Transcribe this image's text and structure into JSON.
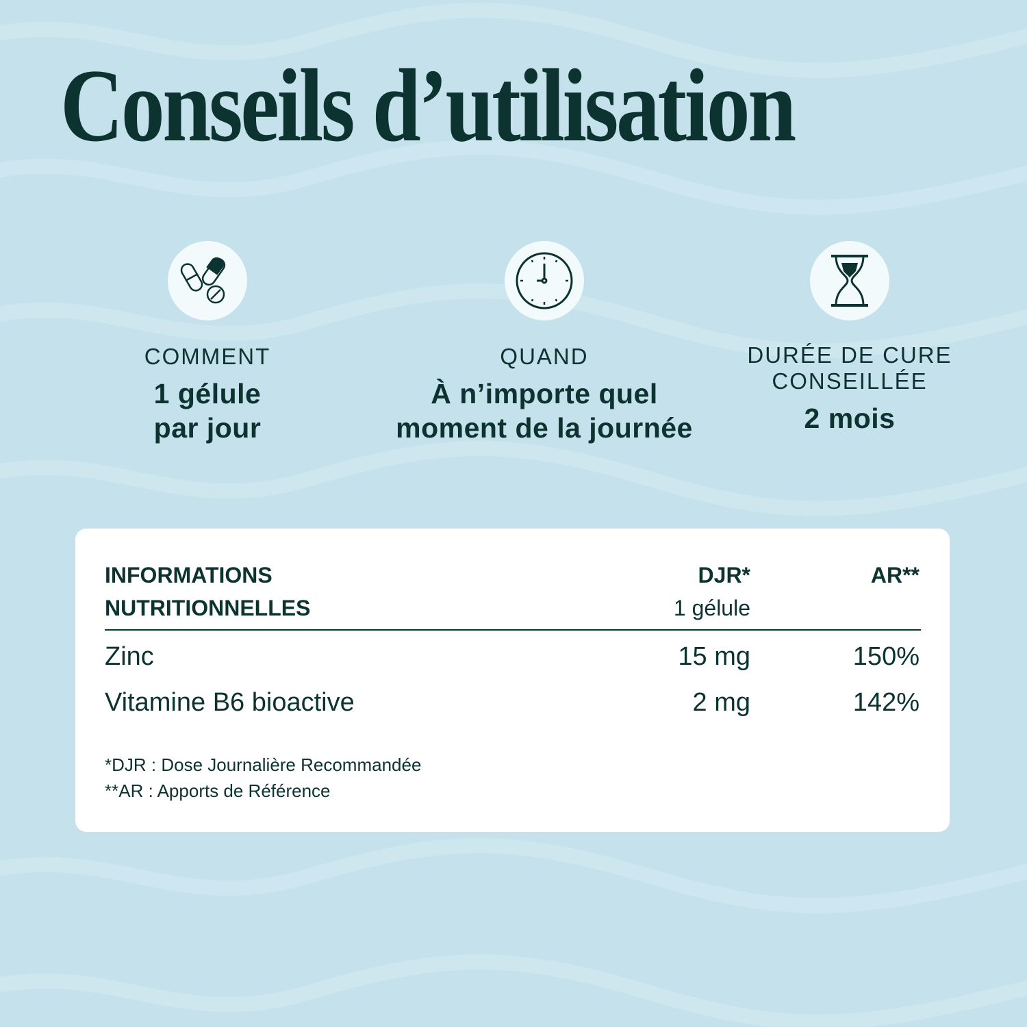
{
  "title": "Conseils d’utilisation",
  "colors": {
    "background": "#c5e1eb",
    "text": "#0d3330",
    "card": "#ffffff"
  },
  "usage": [
    {
      "icon": "pills-icon",
      "label": "COMMENT",
      "value": "1 gélule\npar jour"
    },
    {
      "icon": "clock-icon",
      "label": "QUAND",
      "value": "À n’importe quel\nmoment de la journée"
    },
    {
      "icon": "hourglass-icon",
      "label": "DURÉE DE CURE\nCONSEILLÉE",
      "value": "2 mois"
    }
  ],
  "nutrition": {
    "header": {
      "title": "INFORMATIONS\nNUTRITIONNELLES",
      "djr": "DJR*",
      "djr_sub": "1 gélule",
      "ar": "AR**"
    },
    "rows": [
      {
        "name": "Zinc",
        "djr": "15 mg",
        "ar": "150%"
      },
      {
        "name": "Vitamine B6 bioactive",
        "djr": "2 mg",
        "ar": "142%"
      }
    ],
    "footnotes": [
      "*DJR : Dose Journalière Recommandée",
      "**AR : Apports de Référence"
    ]
  }
}
